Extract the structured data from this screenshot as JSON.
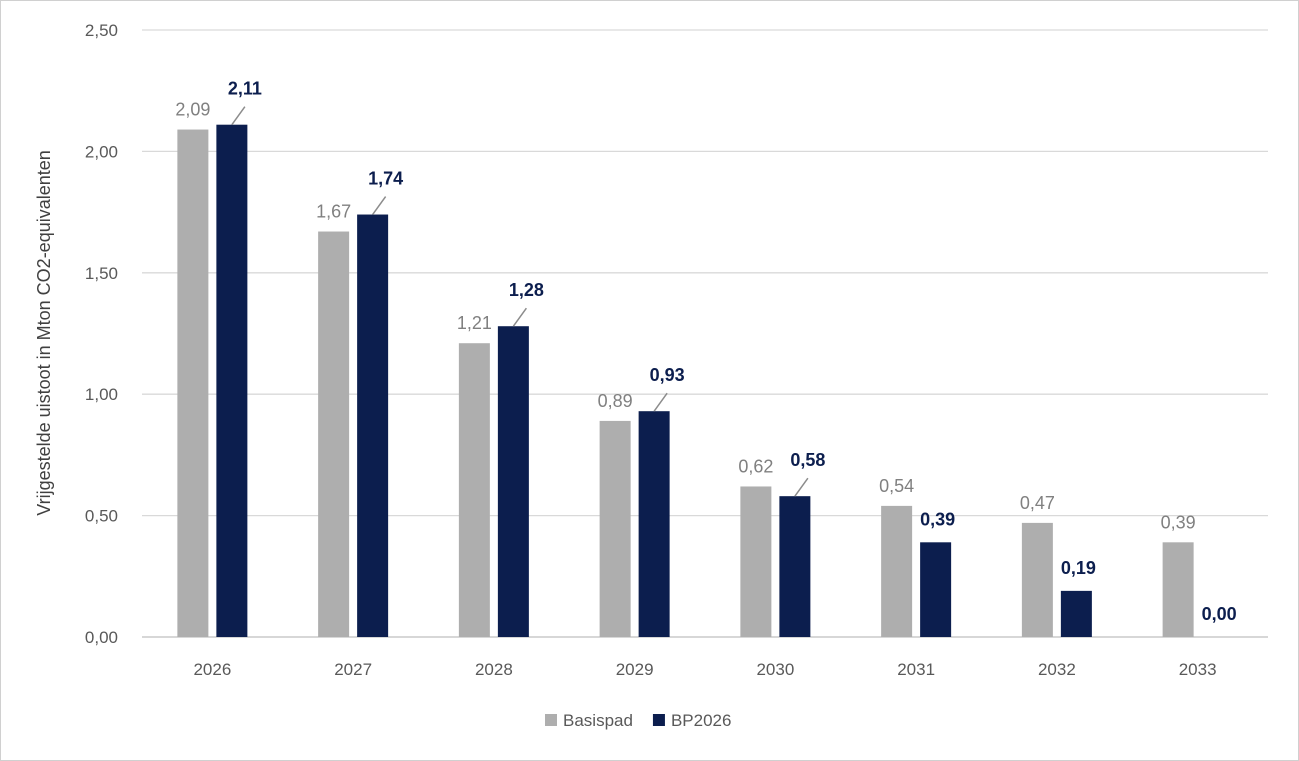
{
  "chart_data": {
    "type": "bar",
    "title": "",
    "xlabel": "",
    "ylabel": "Vrijgestelde uistoot in Mton CO2-equivalenten",
    "categories": [
      "2026",
      "2027",
      "2028",
      "2029",
      "2030",
      "2031",
      "2032",
      "2033"
    ],
    "series": [
      {
        "name": "Basispad",
        "color": "#AEAEAE",
        "label_color": "#808080",
        "values": [
          2.09,
          1.67,
          1.21,
          0.89,
          0.62,
          0.54,
          0.47,
          0.39
        ],
        "labels": [
          "2,09",
          "1,67",
          "1,21",
          "0,89",
          "0,62",
          "0,54",
          "0,47",
          "0,39"
        ]
      },
      {
        "name": "BP2026",
        "color": "#0C1E4E",
        "label_color": "#0C1E4E",
        "values": [
          2.11,
          1.74,
          1.28,
          0.93,
          0.58,
          0.39,
          0.19,
          0.0
        ],
        "labels": [
          "2,11",
          "1,74",
          "1,28",
          "0,93",
          "0,58",
          "0,39",
          "0,19",
          "0,00"
        ]
      }
    ],
    "ylim": [
      0,
      2.5
    ],
    "yticks": [
      "0,00",
      "0,50",
      "1,00",
      "1,50",
      "2,00",
      "2,50"
    ],
    "grid": true,
    "legend": "bottom"
  }
}
